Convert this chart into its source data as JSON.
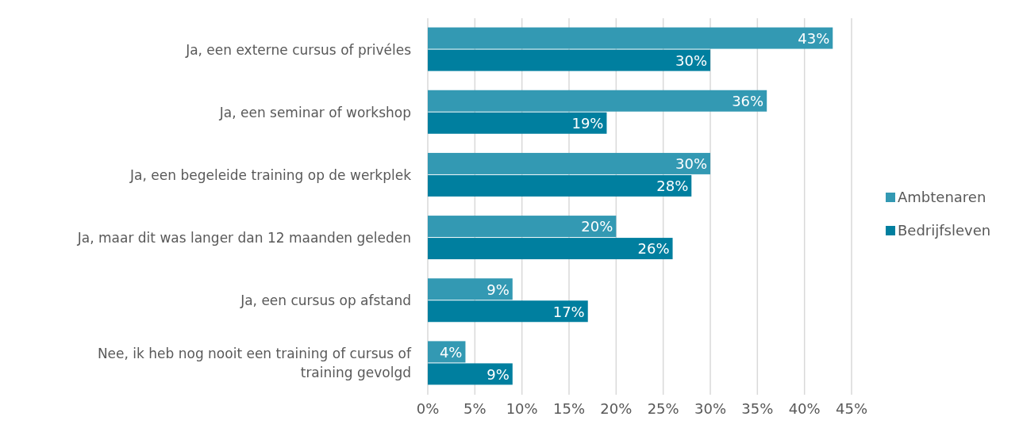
{
  "chart_data": {
    "type": "bar",
    "orientation": "horizontal",
    "categories": [
      "Ja, een externe cursus of privéles",
      "Ja, een seminar of workshop",
      "Ja, een begeleide training op de werkplek",
      "Ja, maar dit was langer dan 12 maanden geleden",
      "Ja, een cursus op afstand",
      "Nee, ik heb nog nooit een training of cursus of training gevolgd"
    ],
    "series": [
      {
        "name": "Ambtenaren",
        "color": "#3399b3",
        "values": [
          43,
          36,
          30,
          20,
          9,
          4
        ],
        "value_labels": [
          "43%",
          "36%",
          "30%",
          "20%",
          "9%",
          "4%"
        ]
      },
      {
        "name": "Bedrijfsleven",
        "color": "#007f9f",
        "values": [
          30,
          19,
          28,
          26,
          17,
          9
        ],
        "value_labels": [
          "30%",
          "19%",
          "28%",
          "26%",
          "17%",
          "9%"
        ]
      }
    ],
    "xlim": [
      0,
      45
    ],
    "xticks": [
      {
        "value": 0,
        "label": "0%"
      },
      {
        "value": 5,
        "label": "5%"
      },
      {
        "value": 10,
        "label": "10%"
      },
      {
        "value": 15,
        "label": "15%"
      },
      {
        "value": 20,
        "label": "20%"
      },
      {
        "value": 25,
        "label": "25%"
      },
      {
        "value": 30,
        "label": "30%"
      },
      {
        "value": 35,
        "label": "35%"
      },
      {
        "value": 40,
        "label": "40%"
      },
      {
        "value": 45,
        "label": "45%"
      }
    ],
    "grid": "x",
    "legend": "right"
  }
}
